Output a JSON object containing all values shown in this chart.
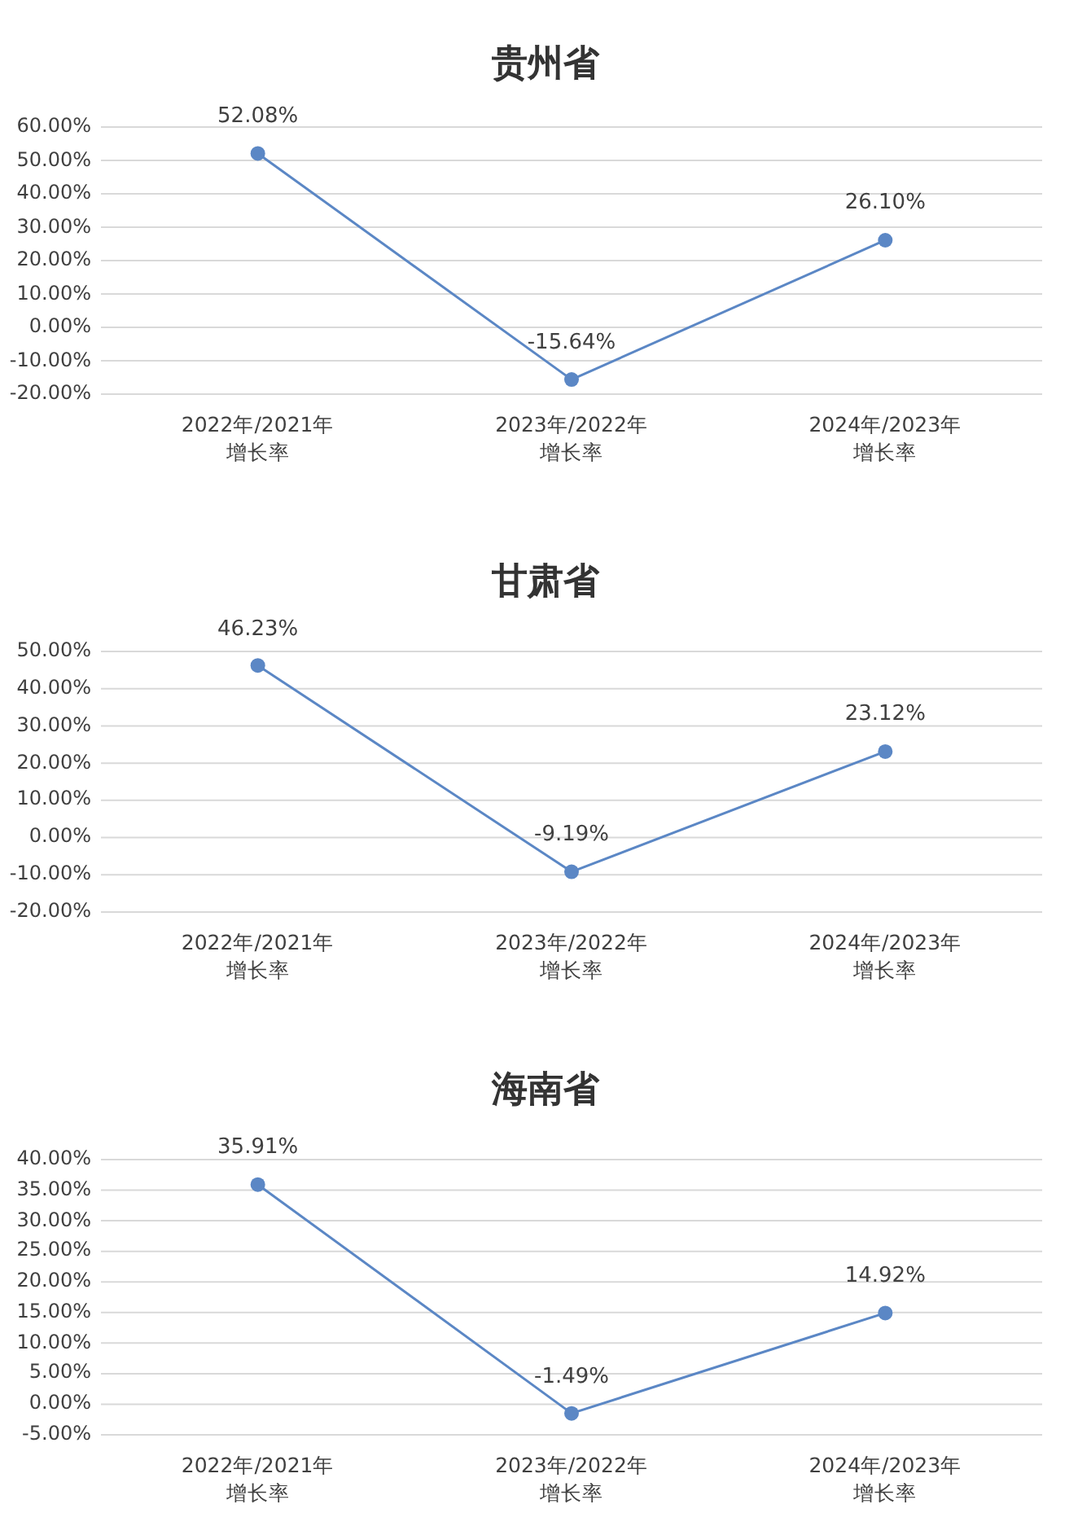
{
  "chart_data": [
    {
      "type": "line",
      "title": "贵州省",
      "categories": [
        "2022年/2021年增长率",
        "2023年/2022年增长率",
        "2024年/2023年增长率"
      ],
      "series": [
        {
          "color": "#5b87c5",
          "values": [
            52.08,
            -15.64,
            26.1
          ],
          "value_labels": [
            "52.08%",
            "-15.64%",
            "26.10%"
          ]
        }
      ],
      "ylim": [
        -20,
        60
      ],
      "yticks": [
        {
          "value": -20,
          "label": "-20.00%"
        },
        {
          "value": -10,
          "label": "-10.00%"
        },
        {
          "value": 0,
          "label": "0.00%"
        },
        {
          "value": 10,
          "label": "10.00%"
        },
        {
          "value": 20,
          "label": "20.00%"
        },
        {
          "value": 30,
          "label": "30.00%"
        },
        {
          "value": 40,
          "label": "40.00%"
        },
        {
          "value": 50,
          "label": "50.00%"
        },
        {
          "value": 60,
          "label": "60.00%"
        }
      ],
      "grid": "y",
      "marker": "circle",
      "line_style": "solid"
    },
    {
      "type": "line",
      "title": "甘肃省",
      "categories": [
        "2022年/2021年增长率",
        "2023年/2022年增长率",
        "2024年/2023年增长率"
      ],
      "series": [
        {
          "color": "#5b87c5",
          "values": [
            46.23,
            -9.19,
            23.12
          ],
          "value_labels": [
            "46.23%",
            "-9.19%",
            "23.12%"
          ]
        }
      ],
      "ylim": [
        -20,
        50
      ],
      "yticks": [
        {
          "value": -20,
          "label": "-20.00%"
        },
        {
          "value": -10,
          "label": "-10.00%"
        },
        {
          "value": 0,
          "label": "0.00%"
        },
        {
          "value": 10,
          "label": "10.00%"
        },
        {
          "value": 20,
          "label": "20.00%"
        },
        {
          "value": 30,
          "label": "30.00%"
        },
        {
          "value": 40,
          "label": "40.00%"
        },
        {
          "value": 50,
          "label": "50.00%"
        }
      ],
      "grid": "y",
      "marker": "circle",
      "line_style": "solid"
    },
    {
      "type": "line",
      "title": "海南省",
      "categories": [
        "2022年/2021年增长率",
        "2023年/2022年增长率",
        "2024年/2023年增长率"
      ],
      "series": [
        {
          "color": "#5b87c5",
          "values": [
            35.91,
            -1.49,
            14.92
          ],
          "value_labels": [
            "35.91%",
            "-1.49%",
            "14.92%"
          ]
        }
      ],
      "ylim": [
        -5,
        40
      ],
      "yticks": [
        {
          "value": -5,
          "label": "-5.00%"
        },
        {
          "value": 0,
          "label": "0.00%"
        },
        {
          "value": 5,
          "label": "5.00%"
        },
        {
          "value": 10,
          "label": "10.00%"
        },
        {
          "value": 15,
          "label": "15.00%"
        },
        {
          "value": 20,
          "label": "20.00%"
        },
        {
          "value": 25,
          "label": "25.00%"
        },
        {
          "value": 30,
          "label": "30.00%"
        },
        {
          "value": 35,
          "label": "35.00%"
        },
        {
          "value": 40,
          "label": "40.00%"
        }
      ],
      "grid": "y",
      "marker": "circle",
      "line_style": "solid"
    }
  ]
}
